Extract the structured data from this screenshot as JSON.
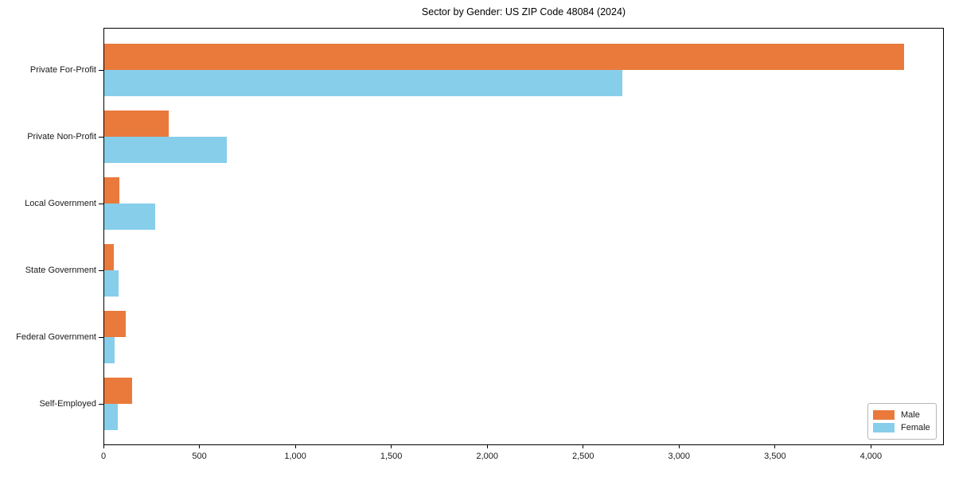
{
  "chart_data": {
    "type": "bar",
    "orientation": "horizontal",
    "title": "Sector by Gender: US ZIP Code 48084 (2024)",
    "categories": [
      "Private For-Profit",
      "Private Non-Profit",
      "Local Government",
      "State Government",
      "Federal Government",
      "Self-Employed"
    ],
    "series": [
      {
        "name": "Male",
        "color": "#E97A3C",
        "values": [
          4170,
          335,
          80,
          50,
          110,
          145
        ]
      },
      {
        "name": "Female",
        "color": "#87CEEB",
        "values": [
          2700,
          640,
          265,
          75,
          55,
          70
        ]
      }
    ],
    "xlabel": "",
    "ylabel": "",
    "xlim": [
      0,
      4380
    ],
    "xticks": [
      0,
      500,
      1000,
      1500,
      2000,
      2500,
      3000,
      3500,
      4000
    ],
    "xtick_labels": [
      "0",
      "500",
      "1,000",
      "1,500",
      "2,000",
      "2,500",
      "3,000",
      "3,500",
      "4,000"
    ],
    "grid": false,
    "legend": {
      "position": "lower-right",
      "items": [
        "Male",
        "Female"
      ]
    }
  }
}
